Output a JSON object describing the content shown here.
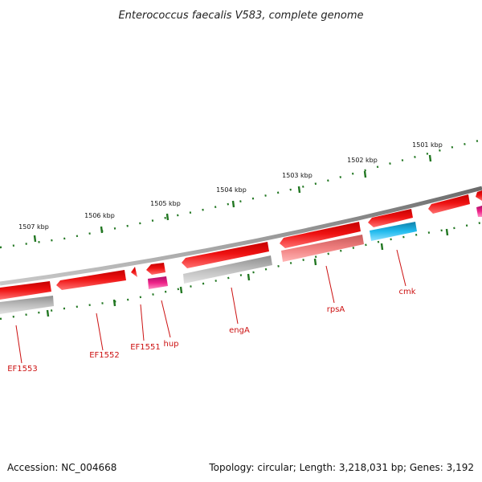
{
  "title": "Enterococcus faecalis V583, complete genome",
  "footer": {
    "accession": "Accession: NC_004668",
    "topology": "Topology: circular; Length: 3,218,031 bp; Genes: 3,192"
  },
  "scale_labels": [
    "1507 kbp",
    "1506 kbp",
    "1505 kbp",
    "1504 kbp",
    "1503 kbp",
    "1502 kbp",
    "1501 kbp"
  ],
  "gene_labels": [
    "EF1553",
    "EF1552",
    "EF1551",
    "hup",
    "engA",
    "rpsA",
    "cmk"
  ],
  "colors": {
    "genome_line": "#8a8a8a",
    "gene_red": "#ee1111",
    "gene_gray": "#b8b8b8",
    "gene_pink": "#f07f7f",
    "gene_magenta": "#ee2288",
    "gene_cyan": "#22bbee",
    "tick_green": "#227722",
    "label_red": "#cc1111"
  }
}
